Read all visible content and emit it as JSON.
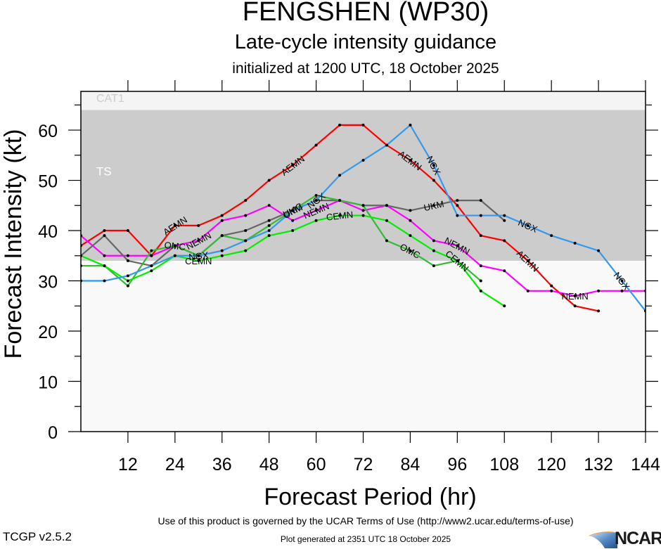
{
  "header": {
    "title": "FENGSHEN (WP30)",
    "subtitle": "Late-cycle intensity guidance",
    "init_line": "initialized at 1200 UTC, 18 October 2025"
  },
  "footer": {
    "version": "TCGP v2.5.2",
    "terms": "Use of this product is governed by the UCAR Terms of Use (http://www2.ucar.edu/terms-of-use)",
    "generated": "Plot generated at 2351 UTC   18 October 2025",
    "logo_text": "NCAR"
  },
  "chart_data": {
    "type": "line",
    "title": "FENGSHEN (WP30)",
    "subtitle": "Late-cycle intensity guidance",
    "xlabel": "Forecast Period (hr)",
    "ylabel": "Forecast Intensity (kt)",
    "xlim": [
      0,
      144
    ],
    "ylim": [
      0,
      67.7
    ],
    "xticks": [
      12,
      24,
      36,
      48,
      60,
      72,
      84,
      96,
      108,
      120,
      132,
      144
    ],
    "yticks": [
      0,
      10,
      20,
      30,
      40,
      50,
      60
    ],
    "grid": false,
    "bands": [
      {
        "label": "TS",
        "from": 34,
        "to": 64,
        "color": "#cccccc",
        "label_color": "#ffffff"
      },
      {
        "label": "CAT1",
        "from": 64,
        "to": 83,
        "color": "#f4f4f4",
        "label_color": "#cccccc"
      }
    ],
    "below_band_color": "#f9f9f9",
    "series": [
      {
        "name": "AEMN",
        "color": "#ff0000",
        "x": [
          0,
          6,
          12,
          18,
          24,
          30,
          36,
          42,
          48,
          54,
          60,
          66,
          72,
          78,
          84,
          90,
          96,
          102,
          108,
          114,
          120,
          126,
          132
        ],
        "y": [
          37,
          40,
          40,
          35,
          41,
          41,
          43,
          46,
          50,
          53,
          57,
          61,
          61,
          57,
          54,
          50,
          45,
          39,
          38,
          34,
          29,
          25,
          24
        ],
        "label_at": [
          24,
          54,
          84,
          114
        ]
      },
      {
        "name": "NEMN",
        "color": "#ff00ff",
        "x": [
          0,
          6,
          12,
          18,
          24,
          30,
          36,
          42,
          48,
          54,
          60,
          66,
          72,
          78,
          84,
          90,
          96,
          102,
          108,
          114,
          120,
          126,
          132,
          138,
          144
        ],
        "y": [
          39,
          35,
          35,
          35,
          37,
          38,
          42,
          43,
          45,
          42,
          44,
          46,
          44,
          45,
          42,
          38,
          37,
          33,
          32,
          28,
          28,
          27,
          28,
          28,
          28
        ],
        "label_at": [
          30,
          60,
          96,
          126
        ]
      },
      {
        "name": "UKM",
        "color": "#666666",
        "x": [
          0,
          6,
          12,
          18,
          24,
          30,
          36,
          42,
          48,
          54,
          60,
          66,
          72,
          78,
          84,
          90,
          96,
          102,
          108
        ],
        "y": [
          35,
          39,
          34,
          33,
          37,
          35,
          39,
          40,
          42,
          44,
          46,
          46,
          45,
          45,
          44,
          45,
          46,
          46,
          42
        ],
        "label_at": [
          54,
          90
        ]
      },
      {
        "name": "OMC",
        "color": "#33bb33",
        "x": [
          0,
          6,
          12,
          18,
          24,
          30,
          36,
          42,
          48,
          54,
          60,
          66,
          72,
          78,
          84,
          90,
          96,
          102
        ],
        "y": [
          33,
          33,
          29,
          36,
          37,
          35,
          39,
          38,
          41,
          44,
          47,
          46,
          45,
          38,
          36,
          33,
          34,
          30
        ],
        "label_at": [
          24,
          54,
          84
        ]
      },
      {
        "name": "CEMN",
        "color": "#00ee00",
        "x": [
          0,
          6,
          12,
          18,
          24,
          30,
          36,
          42,
          48,
          54,
          60,
          66,
          72,
          78,
          84,
          90,
          96,
          102,
          108
        ],
        "y": [
          35,
          33,
          30,
          32,
          35,
          34,
          35,
          36,
          39,
          40,
          42,
          43,
          43,
          42,
          39,
          36,
          34,
          28,
          25
        ],
        "label_at": [
          30,
          66,
          96
        ]
      },
      {
        "name": "NGX",
        "color": "#3399ee",
        "x": [
          0,
          6,
          12,
          18,
          24,
          30,
          36,
          42,
          48,
          54,
          60,
          66,
          72,
          78,
          84,
          90,
          96,
          102,
          108,
          114,
          120,
          126,
          132,
          138,
          144
        ],
        "y": [
          30,
          30,
          31,
          33,
          35,
          35,
          36,
          38,
          40,
          44,
          46,
          51,
          54,
          57,
          61,
          53,
          43,
          43,
          43,
          41,
          39,
          37.5,
          36,
          30,
          24
        ],
        "label_at": [
          30,
          60,
          90,
          114,
          138
        ]
      }
    ]
  }
}
